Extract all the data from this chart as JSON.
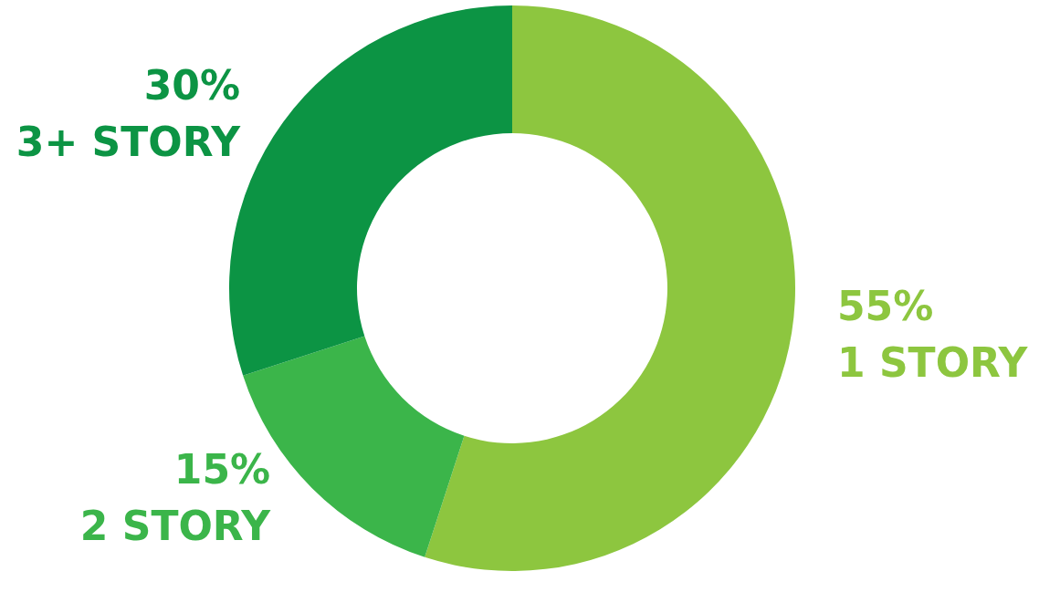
{
  "chart_data": {
    "type": "donut",
    "categories": [
      "1 STORY",
      "2 STORY",
      "3+ STORY"
    ],
    "values": [
      55,
      15,
      30
    ],
    "value_labels": [
      "55%",
      "15%",
      "30%"
    ],
    "colors": [
      "#8dc63f",
      "#3bb54a",
      "#0c9444"
    ],
    "legend": false
  }
}
